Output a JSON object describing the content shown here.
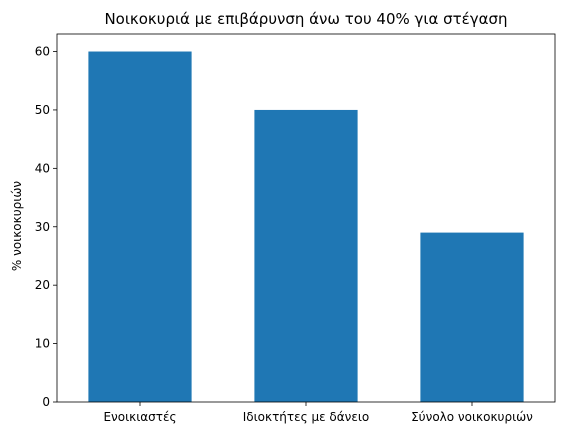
{
  "chart_data": {
    "type": "bar",
    "title": "Νοικοκυριά με επιβάρυνση άνω του 40% για στέγαση",
    "xlabel": "",
    "ylabel": "% νοικοκυριών",
    "categories": [
      "Ενοικιαστές",
      "Ιδιοκτήτες με δάνειο",
      "Σύνολο νοικοκυριών"
    ],
    "values": [
      60,
      50,
      29
    ],
    "ylim": [
      0,
      63
    ],
    "yticks": [
      0,
      10,
      20,
      30,
      40,
      50,
      60
    ],
    "grid": false,
    "colors": {
      "bar": "#1f77b4"
    }
  }
}
